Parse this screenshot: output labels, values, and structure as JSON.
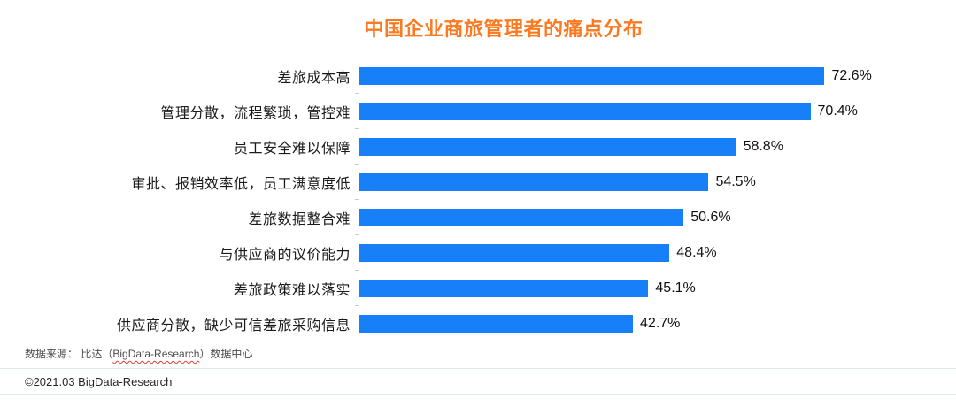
{
  "chart_data": {
    "type": "bar",
    "orientation": "horizontal",
    "title": "中国企业商旅管理者的痛点分布",
    "categories": [
      "差旅成本高",
      "管理分散，流程繁琐，管控难",
      "员工安全难以保障",
      "审批、报销效率低，员工满意度低",
      "差旅数据整合难",
      "与供应商的议价能力",
      "差旅政策难以落实",
      "供应商分散，缺少可信差旅采购信息"
    ],
    "values": [
      72.6,
      70.4,
      58.8,
      54.5,
      50.6,
      48.4,
      45.1,
      42.7
    ],
    "value_suffix": "%",
    "xlim": [
      0,
      80
    ],
    "grid": false,
    "legend": "none",
    "data_labels": "outside-end",
    "bar_color": "#1780F8",
    "title_color": "#FB7A21",
    "axis_color": "#c8c8c8"
  },
  "footer": {
    "source_prefix": "数据来源： 比达（",
    "source_brand": "BigData-Research",
    "source_suffix": "）数据中心",
    "copyright": "©2021.03 BigData-Research"
  }
}
